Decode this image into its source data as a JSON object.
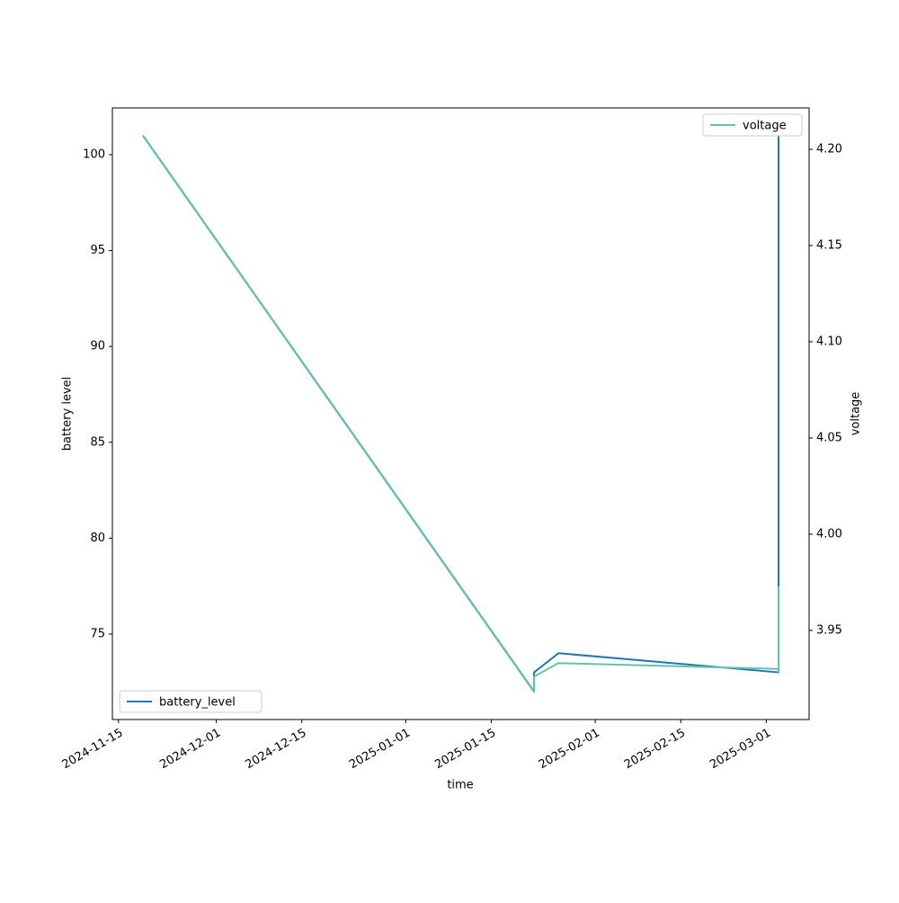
{
  "chart_data": {
    "type": "line",
    "xlabel": "time",
    "ylabel": "battery level",
    "y2label": "voltage",
    "x": [
      "2024-11-19",
      "2025-01-22",
      "2025-01-22",
      "2025-01-22",
      "2025-01-26",
      "2025-03-03",
      "2025-03-03",
      "2025-03-03"
    ],
    "xlim": [
      "2024-11-14",
      "2025-03-08"
    ],
    "xticks": [
      "2024-11-15",
      "2024-12-01",
      "2024-12-15",
      "2025-01-01",
      "2025-01-15",
      "2025-02-01",
      "2025-02-15",
      "2025-03-01"
    ],
    "ylim": [
      70.54,
      102.44
    ],
    "yticks": [
      75,
      80,
      85,
      90,
      95,
      100
    ],
    "y2lim": [
      3.9037,
      4.2215
    ],
    "y2ticks": [
      3.95,
      {
        "value": 4.0,
        "label": "4.00"
      },
      4.05,
      {
        "value": 4.1,
        "label": "4.10"
      },
      4.15,
      {
        "value": 4.2,
        "label": "4.20"
      }
    ],
    "series": [
      {
        "name": "battery_level",
        "color": "#1f77b4",
        "legend": "lower left",
        "values": [
          101,
          72,
          72,
          73,
          74,
          73,
          73,
          101
        ]
      },
      {
        "name": "voltage",
        "color": "#66c2a5",
        "axis": "y2",
        "legend": "upper right",
        "values": [
          4.207,
          3.918,
          3.919,
          3.926,
          3.933,
          3.93,
          3.928,
          3.973
        ]
      }
    ]
  }
}
